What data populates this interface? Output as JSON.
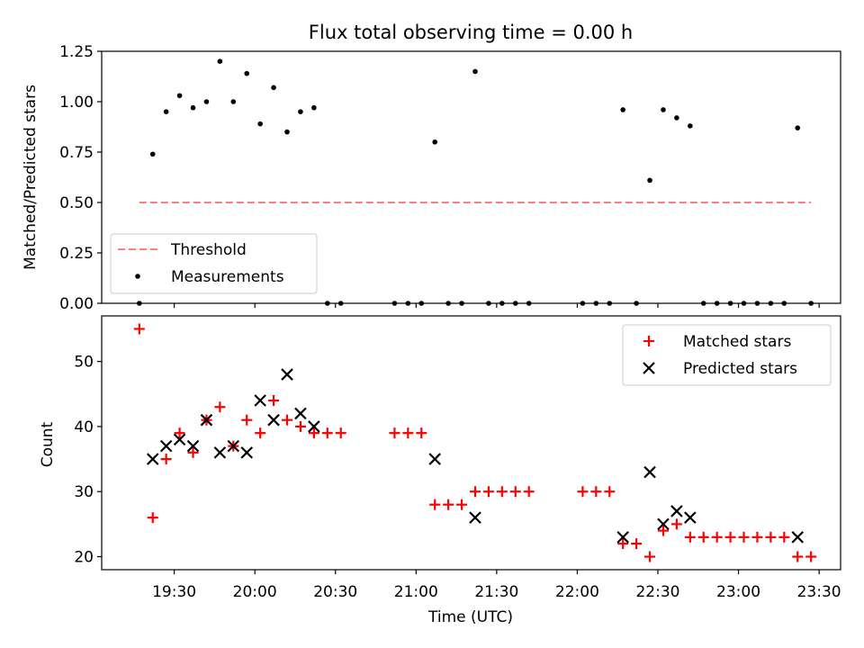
{
  "chart_data": [
    {
      "type": "scatter",
      "title": "Flux total observing time = 0.00 h",
      "ylabel": "Matched/Predicted stars",
      "xlim": [
        "19:03",
        "23:38"
      ],
      "ylim": [
        0,
        1.25
      ],
      "y_ticks": [
        "0.00",
        "0.25",
        "0.50",
        "0.75",
        "1.00",
        "1.25"
      ],
      "legend_position": "lower-left",
      "threshold": {
        "name": "Threshold",
        "value": 0.5,
        "x_range": [
          "19:17",
          "23:27"
        ],
        "color": "#ff7f7f",
        "style": "dashed"
      },
      "series": [
        {
          "name": "Measurements",
          "color": "#000000",
          "marker": "dot",
          "x": [
            "19:17",
            "19:22",
            "19:27",
            "19:32",
            "19:37",
            "19:42",
            "19:47",
            "19:52",
            "19:57",
            "20:02",
            "20:07",
            "20:12",
            "20:17",
            "20:22",
            "20:27",
            "20:32",
            "20:52",
            "20:57",
            "21:02",
            "21:07",
            "21:12",
            "21:17",
            "21:22",
            "21:27",
            "21:32",
            "21:37",
            "21:42",
            "22:02",
            "22:07",
            "22:12",
            "22:17",
            "22:22",
            "22:27",
            "22:32",
            "22:37",
            "22:42",
            "22:47",
            "22:52",
            "22:57",
            "23:02",
            "23:07",
            "23:12",
            "23:17",
            "23:22",
            "23:27"
          ],
          "y": [
            0.0,
            0.74,
            0.95,
            1.03,
            0.97,
            1.0,
            1.2,
            1.0,
            1.14,
            0.89,
            1.07,
            0.85,
            0.95,
            0.97,
            0.0,
            0.0,
            0.0,
            0.0,
            0.0,
            0.8,
            0.0,
            0.0,
            1.15,
            0.0,
            0.0,
            0.0,
            0.0,
            0.0,
            0.0,
            0.0,
            0.96,
            0.0,
            0.61,
            0.96,
            0.92,
            0.88,
            0.0,
            0.0,
            0.0,
            0.0,
            0.0,
            0.0,
            0.0,
            0.87,
            0.0
          ]
        }
      ]
    },
    {
      "type": "scatter",
      "xlabel": "Time (UTC)",
      "ylabel": "Count",
      "xlim": [
        "19:03",
        "23:38"
      ],
      "ylim": [
        18,
        57
      ],
      "x_ticks": [
        "19:30",
        "20:00",
        "20:30",
        "21:00",
        "21:30",
        "22:00",
        "22:30",
        "23:00",
        "23:30"
      ],
      "y_ticks": [
        "20",
        "30",
        "40",
        "50"
      ],
      "legend_position": "top-right",
      "series": [
        {
          "name": "Matched stars",
          "color": "#ff0000",
          "marker": "plus",
          "x": [
            "19:17",
            "19:22",
            "19:27",
            "19:32",
            "19:37",
            "19:42",
            "19:47",
            "19:52",
            "19:57",
            "20:02",
            "20:07",
            "20:12",
            "20:17",
            "20:22",
            "20:27",
            "20:32",
            "20:52",
            "20:57",
            "21:02",
            "21:07",
            "21:12",
            "21:17",
            "21:22",
            "21:27",
            "21:32",
            "21:37",
            "21:42",
            "22:02",
            "22:07",
            "22:12",
            "22:17",
            "22:22",
            "22:27",
            "22:32",
            "22:37",
            "22:42",
            "22:47",
            "22:52",
            "22:57",
            "23:02",
            "23:07",
            "23:12",
            "23:17",
            "23:22",
            "23:27"
          ],
          "y": [
            55,
            26,
            35,
            39,
            36,
            41,
            43,
            37,
            41,
            39,
            44,
            41,
            40,
            39,
            39,
            39,
            39,
            39,
            39,
            28,
            28,
            28,
            30,
            30,
            30,
            30,
            30,
            30,
            30,
            30,
            22,
            22,
            20,
            24,
            25,
            23,
            23,
            23,
            23,
            23,
            23,
            23,
            23,
            20,
            20
          ]
        },
        {
          "name": "Predicted stars",
          "color": "#000000",
          "marker": "x",
          "x": [
            "19:22",
            "19:27",
            "19:32",
            "19:37",
            "19:42",
            "19:47",
            "19:52",
            "19:57",
            "20:02",
            "20:07",
            "20:12",
            "20:17",
            "20:22",
            "21:07",
            "21:22",
            "22:17",
            "22:27",
            "22:32",
            "22:37",
            "22:42",
            "23:22"
          ],
          "y": [
            35,
            37,
            38,
            37,
            41,
            36,
            37,
            36,
            44,
            41,
            48,
            42,
            40,
            35,
            26,
            23,
            33,
            25,
            27,
            26,
            23
          ]
        }
      ]
    }
  ]
}
